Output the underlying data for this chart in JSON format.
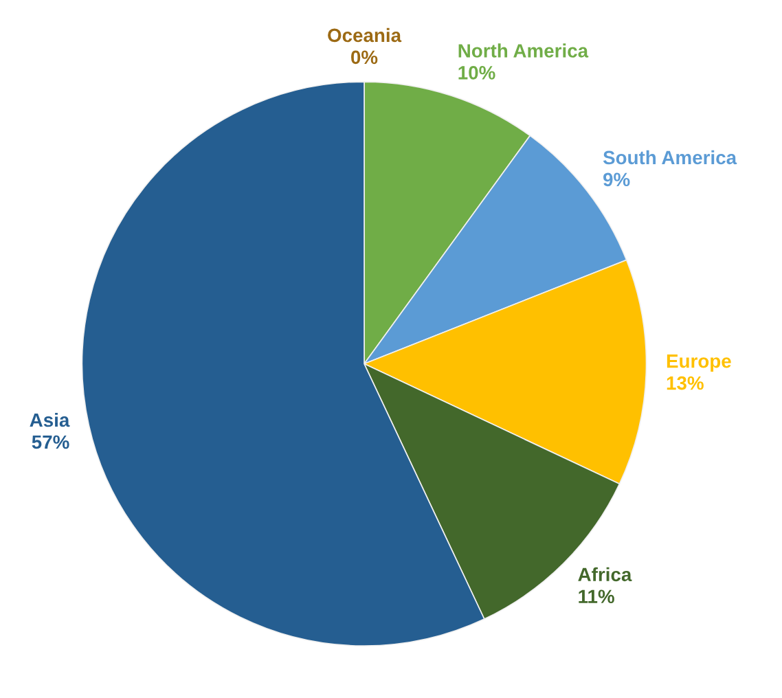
{
  "chart_data": {
    "type": "pie",
    "categories": [
      "Oceania",
      "North America",
      "South America",
      "Europe",
      "Africa",
      "Asia"
    ],
    "values": [
      0,
      10,
      9,
      13,
      11,
      57
    ],
    "value_labels": [
      "0%",
      "10%",
      "9%",
      "13%",
      "11%",
      "57%"
    ],
    "colors": [
      "#9c6a14",
      "#70ad47",
      "#5b9bd5",
      "#ffc000",
      "#43682b",
      "#255e91"
    ],
    "legend": false
  }
}
